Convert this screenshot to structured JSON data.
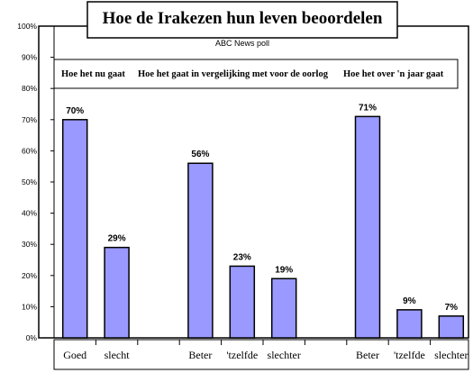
{
  "chart_data": {
    "type": "bar",
    "title": "Hoe de Irakezen hun leven beoordelen",
    "subtitle": "ABC News poll",
    "group_headers": [
      "Hoe het nu gaat",
      "Hoe het gaat in vergelijking met voor de oorlog",
      "Hoe het over 'n jaar gaat"
    ],
    "categories": [
      "Goed",
      "slecht",
      "",
      "Beter",
      "'tzelfde",
      "slechter",
      "",
      "Beter",
      "'tzelfde",
      "slechter"
    ],
    "values": [
      70,
      29,
      null,
      56,
      23,
      19,
      null,
      71,
      9,
      7
    ],
    "value_labels": [
      "70%",
      "29%",
      "",
      "56%",
      "23%",
      "19%",
      "",
      "71%",
      "9%",
      "7%"
    ],
    "y_ticks": [
      "0%",
      "10%",
      "20%",
      "30%",
      "40%",
      "50%",
      "60%",
      "70%",
      "80%",
      "90%",
      "100%"
    ],
    "ylim": [
      0,
      100
    ],
    "grid": false,
    "legend": "none",
    "colors": {
      "bar": "#9999ff",
      "bar_border": "#000000",
      "background": "#ffffff"
    }
  }
}
